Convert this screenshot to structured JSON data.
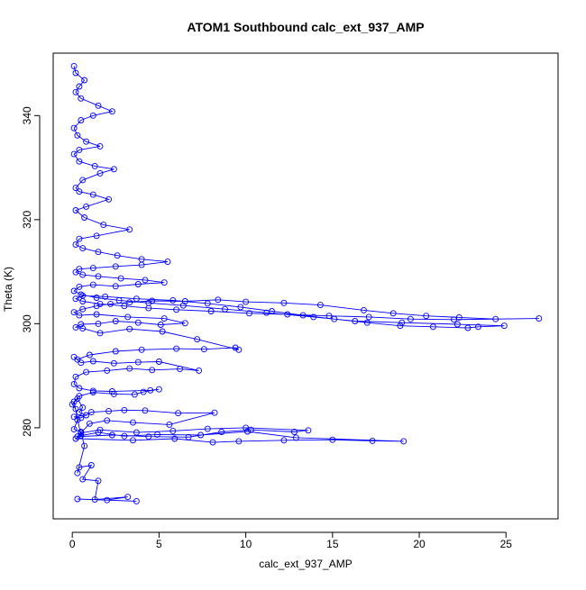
{
  "chart_data": {
    "type": "line",
    "title": "ATOM1 Southbound calc_ext_937_AMP",
    "xlabel": "calc_ext_937_AMP",
    "ylabel": "Theta (K)",
    "xlim": [
      -1.1,
      28.0
    ],
    "ylim": [
      262.5,
      352.0
    ],
    "xticks": [
      0,
      5,
      10,
      15,
      20,
      25
    ],
    "yticks": [
      280,
      300,
      320,
      340
    ],
    "grid": false,
    "legend": "none",
    "line_color": "#0000ff",
    "marker": "open-circle",
    "series": [
      {
        "x": [
          3.7,
          0.3,
          2.0,
          3.2,
          1.3,
          1.5,
          0.6,
          1.1,
          0.4,
          0.3,
          0.7,
          0.5,
          0.1,
          0.3,
          0.2,
          0.0,
          0.3,
          0.6,
          0.4,
          0.8,
          0.1,
          0.5,
          1.1,
          2.1,
          3.0,
          4.2,
          6.1,
          8.2,
          5.6,
          3.5,
          2.0,
          1.0,
          0.3,
          2.3,
          4.4,
          6.7,
          8.6,
          10.3,
          12.8,
          13.6,
          10.0,
          7.8,
          5.8,
          3.7,
          1.6,
          0.5,
          0.2,
          3.5,
          5.9,
          8.1,
          9.6,
          12.2,
          15.0,
          17.3,
          19.1,
          12.9,
          10.1,
          7.4,
          4.9,
          3.0,
          1.5,
          0.5,
          0.1,
          0.4,
          1.2,
          2.4,
          3.6,
          4.1,
          5.0,
          4.5,
          2.3,
          1.2,
          0.4,
          0.1,
          0.2,
          0.8,
          2.0,
          3.3,
          4.6,
          6.2,
          7.3,
          5.0,
          3.8,
          2.4,
          1.2,
          0.5,
          0.1,
          0.3,
          1.0,
          2.5,
          4.0,
          6.0,
          7.6,
          9.4,
          9.6,
          7.2,
          5.2,
          3.3,
          1.6,
          0.6,
          0.2,
          0.5,
          1.5,
          2.5,
          3.8,
          5.1,
          6.5,
          5.3,
          3.2,
          1.4,
          0.4,
          0.1,
          0.6,
          1.4,
          2.2,
          3.3,
          4.6,
          6.5,
          8.4,
          10.0,
          12.2,
          14.3,
          16.8,
          18.5,
          20.4,
          22.3,
          24.4,
          26.9,
          22.0,
          19.5,
          17.1,
          14.8,
          12.4,
          10.2,
          8.0,
          6.0,
          4.4,
          3.0,
          1.6,
          0.6,
          0.2,
          0.6,
          1.9,
          3.7,
          5.8,
          7.8,
          9.7,
          11.5,
          13.3,
          15.1,
          17.0,
          18.9,
          20.8,
          22.8,
          23.4,
          24.9,
          22.2,
          19.0,
          16.3,
          13.9,
          11.2,
          8.8,
          6.4,
          4.4,
          2.7,
          1.4,
          0.5,
          0.1,
          0.4,
          1.2,
          2.5,
          3.8,
          5.3,
          4.2,
          2.8,
          1.5,
          0.6,
          0.2,
          0.4,
          1.2,
          2.5,
          4.0,
          5.5,
          4.0,
          2.6,
          1.5,
          0.6,
          0.2,
          0.4,
          1.4,
          3.3,
          1.8,
          0.7,
          0.2,
          0.8,
          2.1,
          1.2,
          0.4,
          0.2,
          0.6,
          1.6,
          2.4,
          1.3,
          0.4,
          0.1,
          0.4,
          1.6,
          0.8,
          0.3,
          0.1,
          0.5,
          1.2,
          2.3,
          1.5,
          0.5,
          0.2,
          0.4,
          0.7,
          0.2,
          0.1
        ],
        "y": [
          265.9,
          266.3,
          266.1,
          266.7,
          266.2,
          269.8,
          270.1,
          272.8,
          272.4,
          271.3,
          276.5,
          279.2,
          279.7,
          281.5,
          283.6,
          284.5,
          285.6,
          283.9,
          283.0,
          282.4,
          282.1,
          281.9,
          283.0,
          283.2,
          283.4,
          283.3,
          282.8,
          282.9,
          280.6,
          281.0,
          281.4,
          280.8,
          278.3,
          278.6,
          278.3,
          278.2,
          279.2,
          279.6,
          279.2,
          279.5,
          280.0,
          279.8,
          279.4,
          279.1,
          279.6,
          279.0,
          277.9,
          277.6,
          277.9,
          277.2,
          277.4,
          277.6,
          277.7,
          277.5,
          277.4,
          278.1,
          279.3,
          278.6,
          278.7,
          278.4,
          279.1,
          278.5,
          285.0,
          286.1,
          286.8,
          286.5,
          286.4,
          286.9,
          287.4,
          287.2,
          287.0,
          287.1,
          287.6,
          288.4,
          289.8,
          290.7,
          291.0,
          291.4,
          291.1,
          291.3,
          291.0,
          292.7,
          292.6,
          292.4,
          292.8,
          292.5,
          293.6,
          293.1,
          294.0,
          294.7,
          295.0,
          295.2,
          295.1,
          295.4,
          295.0,
          297.0,
          298.5,
          299.0,
          298.2,
          299.1,
          299.3,
          299.9,
          300.0,
          300.5,
          300.2,
          299.8,
          300.1,
          301.0,
          301.3,
          301.8,
          301.6,
          302.2,
          302.8,
          303.4,
          303.8,
          304.1,
          304.4,
          304.3,
          304.6,
          304.2,
          304.0,
          303.6,
          302.6,
          302.0,
          301.5,
          301.2,
          300.9,
          301.0,
          300.8,
          300.9,
          301.3,
          301.5,
          301.8,
          302.0,
          302.4,
          302.7,
          303.0,
          303.4,
          303.8,
          304.3,
          304.8,
          305.4,
          305.2,
          304.8,
          304.5,
          303.9,
          303.2,
          302.4,
          301.6,
          300.9,
          300.2,
          299.6,
          299.4,
          299.2,
          299.4,
          299.6,
          299.9,
          300.2,
          300.5,
          301.3,
          302.1,
          302.8,
          303.5,
          304.0,
          304.5,
          305.0,
          305.6,
          306.3,
          307.1,
          307.5,
          307.2,
          307.6,
          307.9,
          308.4,
          308.7,
          309.1,
          309.4,
          309.9,
          310.5,
          310.7,
          311.0,
          311.3,
          311.9,
          312.4,
          313.1,
          313.8,
          314.5,
          315.2,
          316.3,
          316.9,
          318.1,
          319.0,
          320.4,
          321.8,
          322.5,
          323.9,
          324.8,
          325.4,
          326.1,
          327.6,
          328.9,
          329.7,
          330.3,
          331.2,
          332.6,
          333.4,
          334.1,
          335.0,
          336.2,
          337.6,
          339.1,
          340.0,
          340.8,
          341.9,
          343.3,
          344.5,
          345.6,
          346.8,
          348.2,
          349.5
        ]
      }
    ]
  }
}
